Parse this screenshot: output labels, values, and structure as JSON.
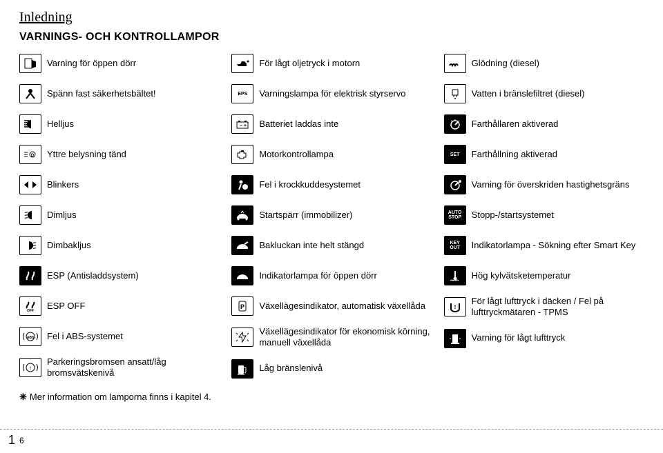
{
  "section_title": "Inledning",
  "heading": "VARNINGS- OCH KONTROLLAMPOR",
  "col1": [
    {
      "label": "Varning för öppen dörr",
      "icon": "door-open-icon",
      "variant": "white"
    },
    {
      "label": "Spänn fast säkerhetsbältet!",
      "icon": "seatbelt-icon",
      "variant": "white"
    },
    {
      "label": "Helljus",
      "icon": "high-beam-icon",
      "variant": "white"
    },
    {
      "label": "Yttre belysning tänd",
      "icon": "exterior-light-icon",
      "variant": "white"
    },
    {
      "label": "Blinkers",
      "icon": "turn-signal-icon",
      "variant": "white"
    },
    {
      "label": "Dimljus",
      "icon": "front-fog-icon",
      "variant": "white"
    },
    {
      "label": "Dimbakljus",
      "icon": "rear-fog-icon",
      "variant": "white"
    },
    {
      "label": "ESP (Antisladdsystem)",
      "icon": "esp-icon",
      "variant": "black"
    },
    {
      "label": "ESP OFF",
      "icon": "esp-off-icon",
      "variant": "white"
    },
    {
      "label": "Fel i ABS-systemet",
      "icon": "abs-icon",
      "variant": "white"
    },
    {
      "label": "Parkeringsbromsen ansatt/låg bromsvätskenivå",
      "icon": "brake-icon",
      "variant": "white"
    }
  ],
  "col2": [
    {
      "label": "För lågt oljetryck i motorn",
      "icon": "oil-icon",
      "variant": "white"
    },
    {
      "label": "Varningslampa för elektrisk styrservo",
      "icon": "eps-icon",
      "variant": "white",
      "text": "EPS"
    },
    {
      "label": "Batteriet laddas inte",
      "icon": "battery-icon",
      "variant": "white"
    },
    {
      "label": "Motorkontrollampa",
      "icon": "engine-icon",
      "variant": "white"
    },
    {
      "label": "Fel i krockkuddesystemet",
      "icon": "airbag-icon",
      "variant": "black"
    },
    {
      "label": "Startspärr (immobilizer)",
      "icon": "immobilizer-icon",
      "variant": "black"
    },
    {
      "label": "Bakluckan inte helt stängd",
      "icon": "trunk-open-icon",
      "variant": "black"
    },
    {
      "label": "Indikatorlampa för öppen dörr",
      "icon": "door-ajar-icon",
      "variant": "black"
    },
    {
      "label": "Växellägesindikator, automatisk växellåda",
      "icon": "gear-auto-icon",
      "variant": "white"
    },
    {
      "label": "Växellägesindikator för ekonomisk körning, manuell växellåda",
      "icon": "gear-eco-icon",
      "variant": "white"
    },
    {
      "label": "Låg bränslenivå",
      "icon": "fuel-icon",
      "variant": "black"
    }
  ],
  "col3": [
    {
      "label": "Glödning (diesel)",
      "icon": "glow-plug-icon",
      "variant": "white"
    },
    {
      "label": "Vatten i bränslefiltret (diesel)",
      "icon": "fuel-filter-icon",
      "variant": "white"
    },
    {
      "label": "Farthållaren aktiverad",
      "icon": "cruise-icon",
      "variant": "black"
    },
    {
      "label": "Farthållning aktiverad",
      "icon": "set-icon",
      "variant": "black",
      "text": "SET"
    },
    {
      "label": "Varning för överskriden hastighetsgräns",
      "icon": "speed-limit-icon",
      "variant": "black"
    },
    {
      "label": "Stopp-/startsystemet",
      "icon": "auto-stop-icon",
      "variant": "black",
      "text": "AUTO STOP"
    },
    {
      "label": "Indikatorlampa - Sökning efter Smart Key",
      "icon": "key-out-icon",
      "variant": "black",
      "text": "KEY OUT"
    },
    {
      "label": "Hög kylvätsketemperatur",
      "icon": "coolant-temp-icon",
      "variant": "black"
    },
    {
      "label": "För lågt lufttryck i däcken / Fel på lufttryckmätaren - TPMS",
      "icon": "tpms-icon",
      "variant": "white"
    },
    {
      "label": "Varning för lågt lufttryck",
      "icon": "low-tire-icon",
      "variant": "black"
    }
  ],
  "footnote": "Mer information om lamporna finns i kapitel 4.",
  "page_chapter": "1",
  "page_number": "6"
}
